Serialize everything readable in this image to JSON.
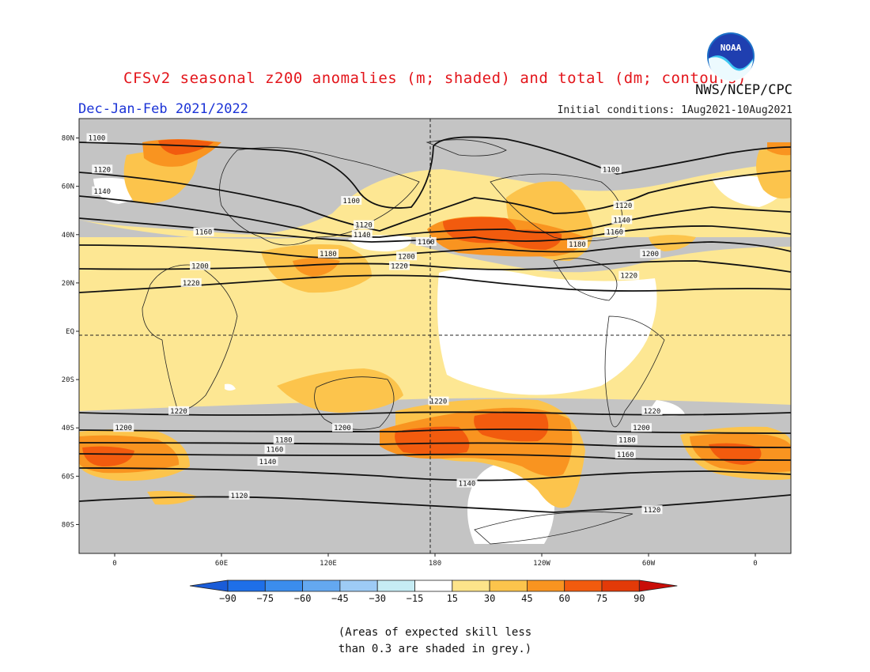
{
  "title": "CFSv2 seasonal z200 anomalies (m; shaded) and total (dm; contours)",
  "agency": "NWS/NCEP/CPC",
  "season": "Dec-Jan-Feb 2021/2022",
  "initial_conditions": "Initial conditions: 1Aug2021-10Aug2021",
  "logo_text": "NOAA",
  "lat_ticks": [
    {
      "label": "80N",
      "lat": 80
    },
    {
      "label": "60N",
      "lat": 60
    },
    {
      "label": "40N",
      "lat": 40
    },
    {
      "label": "20N",
      "lat": 20
    },
    {
      "label": "EQ",
      "lat": 0
    },
    {
      "label": "20S",
      "lat": -20
    },
    {
      "label": "40S",
      "lat": -40
    },
    {
      "label": "60S",
      "lat": -60
    },
    {
      "label": "80S",
      "lat": -80
    }
  ],
  "lon_ticks": [
    {
      "label": "0",
      "lon": 0
    },
    {
      "label": "60E",
      "lon": 60
    },
    {
      "label": "120E",
      "lon": 120
    },
    {
      "label": "180",
      "lon": 180
    },
    {
      "label": "120W",
      "lon": 240
    },
    {
      "label": "60W",
      "lon": 300
    },
    {
      "label": "0",
      "lon": 360
    }
  ],
  "contour_labels": [
    {
      "text": "1100",
      "lon": -10,
      "lat": 80
    },
    {
      "text": "1120",
      "lon": -7,
      "lat": 67
    },
    {
      "text": "1140",
      "lon": -7,
      "lat": 58
    },
    {
      "text": "1160",
      "lon": 50,
      "lat": 41
    },
    {
      "text": "1200",
      "lon": 48,
      "lat": 27
    },
    {
      "text": "1220",
      "lon": 43,
      "lat": 20
    },
    {
      "text": "1100",
      "lon": 133,
      "lat": 54
    },
    {
      "text": "1120",
      "lon": 140,
      "lat": 44
    },
    {
      "text": "1140",
      "lon": 139,
      "lat": 40
    },
    {
      "text": "1180",
      "lon": 120,
      "lat": 32
    },
    {
      "text": "1160",
      "lon": 175,
      "lat": 37
    },
    {
      "text": "1200",
      "lon": 164,
      "lat": 31
    },
    {
      "text": "1220",
      "lon": 160,
      "lat": 27
    },
    {
      "text": "1100",
      "lon": 279,
      "lat": 67
    },
    {
      "text": "1120",
      "lon": 286,
      "lat": 52
    },
    {
      "text": "1140",
      "lon": 285,
      "lat": 46
    },
    {
      "text": "1160",
      "lon": 281,
      "lat": 41
    },
    {
      "text": "1180",
      "lon": 260,
      "lat": 36
    },
    {
      "text": "1200",
      "lon": 301,
      "lat": 32
    },
    {
      "text": "1220",
      "lon": 289,
      "lat": 23
    },
    {
      "text": "1220",
      "lon": 36,
      "lat": -33
    },
    {
      "text": "1200",
      "lon": 5,
      "lat": -40
    },
    {
      "text": "1200",
      "lon": 128,
      "lat": -40
    },
    {
      "text": "1180",
      "lon": 95,
      "lat": -45
    },
    {
      "text": "1160",
      "lon": 90,
      "lat": -49
    },
    {
      "text": "1140",
      "lon": 86,
      "lat": -54
    },
    {
      "text": "1120",
      "lon": 70,
      "lat": -68
    },
    {
      "text": "1220",
      "lon": 182,
      "lat": -29
    },
    {
      "text": "1140",
      "lon": 198,
      "lat": -63
    },
    {
      "text": "1220",
      "lon": 302,
      "lat": -33
    },
    {
      "text": "1200",
      "lon": 296,
      "lat": -40
    },
    {
      "text": "1180",
      "lon": 288,
      "lat": -45
    },
    {
      "text": "1160",
      "lon": 287,
      "lat": -51
    },
    {
      "text": "1120",
      "lon": 302,
      "lat": -74
    }
  ],
  "legend": {
    "labels": [
      "−90",
      "−75",
      "−60",
      "−45",
      "−30",
      "−15",
      "15",
      "30",
      "45",
      "60",
      "75",
      "90"
    ],
    "colors": [
      "#1a5cd8",
      "#1e6fe8",
      "#3b8ded",
      "#64a8f0",
      "#9dcbf5",
      "#c6ecf4",
      "#ffffff",
      "#fde48a",
      "#fcc44c",
      "#f99420",
      "#f25b0e",
      "#e33a08",
      "#c90e08"
    ]
  },
  "skill_note_line1": "(Areas of expected skill less",
  "skill_note_line2": "than 0.3 are shaded in grey.)"
}
